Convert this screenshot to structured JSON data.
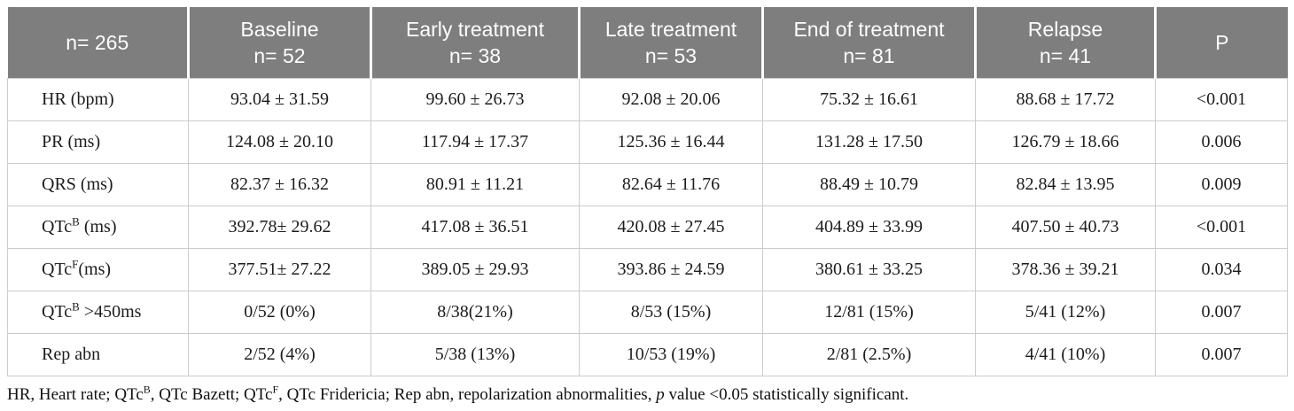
{
  "table": {
    "header": [
      {
        "line1": "n= 265",
        "line2": ""
      },
      {
        "line1": "Baseline",
        "line2": "n= 52"
      },
      {
        "line1": "Early treatment",
        "line2": "n= 38"
      },
      {
        "line1": "Late treatment",
        "line2": "n= 53"
      },
      {
        "line1": "End of treatment",
        "line2": "n= 81"
      },
      {
        "line1": "Relapse",
        "line2": "n= 41"
      },
      {
        "line1": "P",
        "line2": ""
      }
    ],
    "rows": [
      {
        "label": {
          "pre": "HR (bpm)",
          "sup": "",
          "post": ""
        },
        "values": [
          "93.04 ± 31.59",
          "99.60 ± 26.73",
          "92.08 ± 20.06",
          "75.32 ± 16.61",
          "88.68 ± 17.72"
        ],
        "p": "<0.001"
      },
      {
        "label": {
          "pre": "PR (ms)",
          "sup": "",
          "post": ""
        },
        "values": [
          "124.08 ± 20.10",
          "117.94 ± 17.37",
          "125.36 ± 16.44",
          "131.28 ± 17.50",
          "126.79 ± 18.66"
        ],
        "p": "0.006"
      },
      {
        "label": {
          "pre": "QRS (ms)",
          "sup": "",
          "post": ""
        },
        "values": [
          "82.37 ± 16.32",
          "80.91 ± 11.21",
          "82.64 ± 11.76",
          "88.49 ± 10.79",
          "82.84 ± 13.95"
        ],
        "p": "0.009"
      },
      {
        "label": {
          "pre": "QTc",
          "sup": "B",
          "post": " (ms)"
        },
        "values": [
          "392.78± 29.62",
          "417.08 ± 36.51",
          "420.08 ± 27.45",
          "404.89 ± 33.99",
          "407.50 ± 40.73"
        ],
        "p": "<0.001"
      },
      {
        "label": {
          "pre": "QTc",
          "sup": "F",
          "post": "(ms)"
        },
        "values": [
          "377.51± 27.22",
          "389.05 ± 29.93",
          "393.86 ± 24.59",
          "380.61 ± 33.25",
          "378.36 ± 39.21"
        ],
        "p": "0.034"
      },
      {
        "label": {
          "pre": "QTc",
          "sup": "B",
          "post": " >450ms"
        },
        "values": [
          "0/52 (0%)",
          "8/38(21%)",
          "8/53 (15%)",
          "12/81 (15%)",
          "5/41 (12%)"
        ],
        "p": "0.007"
      },
      {
        "label": {
          "pre": "Rep abn",
          "sup": "",
          "post": ""
        },
        "values": [
          "2/52 (4%)",
          "5/38 (13%)",
          "10/53 (19%)",
          "2/81 (2.5%)",
          "4/41 (10%)"
        ],
        "p": "0.007"
      }
    ]
  },
  "footnote": {
    "part1": "HR, Heart rate; QTc",
    "sup1": "B",
    "part2": ", QTc Bazett; QTc",
    "sup2": "F",
    "part3": ", QTc Fridericia; Rep abn, repolarization abnormalities, ",
    "italic_p": "p",
    "part4": " value <0.05 statistically significant."
  },
  "colors": {
    "header_bg": "#7e7e7e",
    "header_text": "#ffffff",
    "body_border": "#cccccc",
    "body_text": "#1c1c1c"
  }
}
